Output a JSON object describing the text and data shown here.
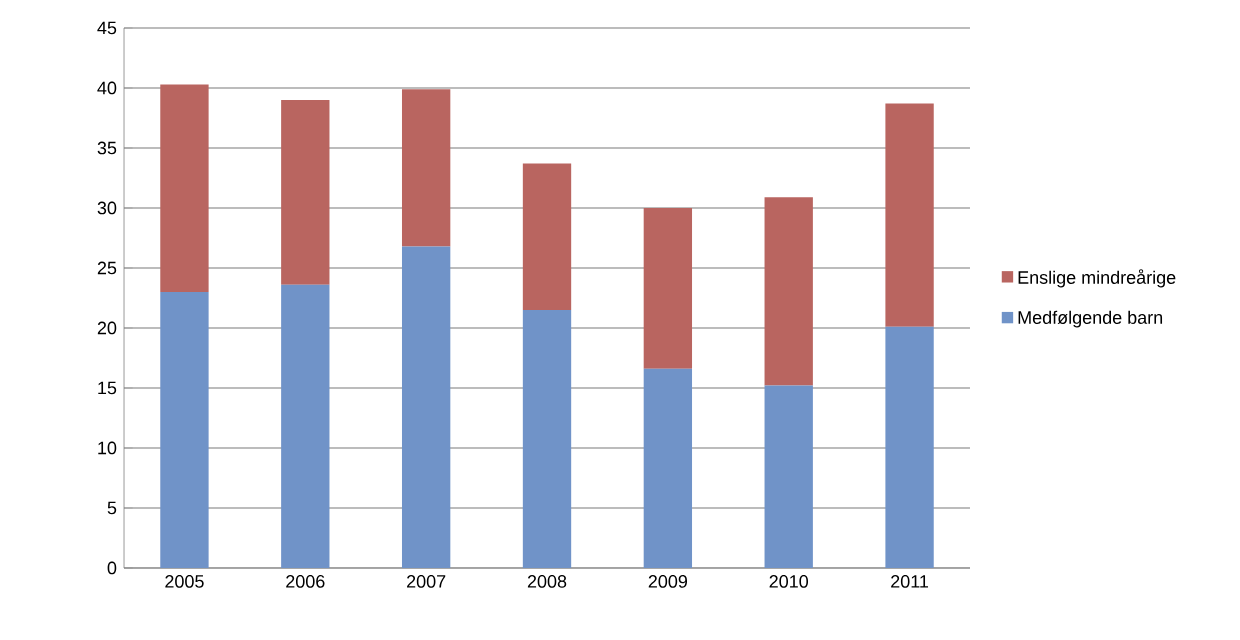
{
  "chart_data": {
    "type": "bar",
    "stacked": true,
    "categories": [
      "2005",
      "2006",
      "2007",
      "2008",
      "2009",
      "2010",
      "2011"
    ],
    "series": [
      {
        "name": "Medfølgende barn",
        "color": "#7093c8",
        "values": [
          23.0,
          23.6,
          26.8,
          21.5,
          16.6,
          15.2,
          20.1
        ]
      },
      {
        "name": "Enslige mindreårige",
        "color": "#b96560",
        "values": [
          17.3,
          15.4,
          13.1,
          12.2,
          13.4,
          15.7,
          18.6
        ]
      }
    ],
    "ylim": [
      0,
      45
    ],
    "yticks": [
      0,
      5,
      10,
      15,
      20,
      25,
      30,
      35,
      40,
      45
    ],
    "grid": "y",
    "legend": "right"
  }
}
